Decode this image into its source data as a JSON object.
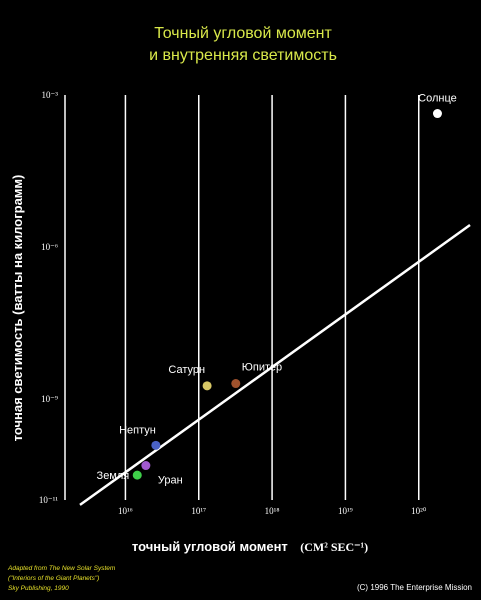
{
  "chart_data": {
    "type": "scatter",
    "title_lines": [
      "Точный угловой момент",
      "и внутренняя светимость"
    ],
    "ylabel": "точная светимость (ватты на килограмм)",
    "xlabel": "точный угловой момент",
    "xunit": "(CM² SEC⁻¹)",
    "xscale": "log",
    "yscale": "log",
    "xlim": [
      1500000000000000.0,
      5e+20
    ],
    "ylim": [
      1e-11,
      0.001
    ],
    "x_ticks": [
      {
        "value": 1e+16,
        "label": "10¹⁶"
      },
      {
        "value": 1e+17,
        "label": "10¹⁷"
      },
      {
        "value": 1e+18,
        "label": "10¹⁸"
      },
      {
        "value": 1e+19,
        "label": "10¹⁹"
      },
      {
        "value": 1e+20,
        "label": "10²⁰"
      }
    ],
    "y_ticks": [
      {
        "value": 0.001,
        "label": "10⁻³"
      },
      {
        "value": 1e-06,
        "label": "10⁻⁶"
      },
      {
        "value": 1e-09,
        "label": "10⁻⁹"
      },
      {
        "value": 1e-11,
        "label": "10⁻¹¹"
      }
    ],
    "grid": "vertical",
    "points": [
      {
        "label": "Солнце",
        "x": 1.8e+20,
        "y": 0.00043,
        "color": "#ffffff"
      },
      {
        "label": "Юпитер",
        "x": 3.2e+17,
        "y": 2e-09,
        "color": "#a0522d"
      },
      {
        "label": "Сатурн",
        "x": 1.3e+17,
        "y": 1.8e-09,
        "color": "#d8c866"
      },
      {
        "label": "Нептун",
        "x": 2.6e+16,
        "y": 1.2e-10,
        "color": "#4a62c4"
      },
      {
        "label": "Уран",
        "x": 1.9e+16,
        "y": 4.8e-11,
        "color": "#a25ad0"
      },
      {
        "label": "Земля",
        "x": 1.45e+16,
        "y": 3.1e-11,
        "color": "#3fcf4a"
      }
    ],
    "trend_line": {
      "x": [
        2400000000000000.0,
        5e+20
      ],
      "y": [
        8e-12,
        2.7e-06
      ],
      "color": "#ffffff"
    }
  },
  "credits": {
    "line1": "Adapted from The New Solar System",
    "line2": "(\"Interiors of the Giant Planets\")",
    "line3": "Sky Publishing, 1990",
    "copyright": "(C) 1996 The Enterprise Mission"
  }
}
